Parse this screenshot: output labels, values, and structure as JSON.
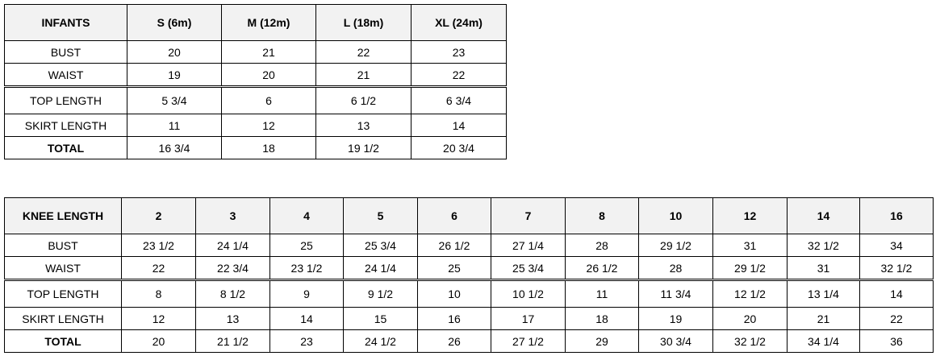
{
  "tables": [
    {
      "header": [
        "INFANTS",
        "S (6m)",
        "M (12m)",
        "L (18m)",
        "XL (24m)"
      ],
      "rows": [
        {
          "label": "BUST",
          "values": [
            "20",
            "21",
            "22",
            "23"
          ]
        },
        {
          "label": "WAIST",
          "values": [
            "19",
            "20",
            "21",
            "22"
          ]
        },
        {
          "label": "TOP LENGTH",
          "values": [
            "5 3/4",
            "6",
            "6 1/2",
            "6 3/4"
          ]
        },
        {
          "label": "SKIRT LENGTH",
          "values": [
            "11",
            "12",
            "13",
            "14"
          ]
        },
        {
          "label": "TOTAL",
          "values": [
            "16 3/4",
            "18",
            "19 1/2",
            "20 3/4"
          ]
        }
      ]
    },
    {
      "header": [
        "KNEE LENGTH",
        "2",
        "3",
        "4",
        "5",
        "6",
        "7",
        "8",
        "10",
        "12",
        "14",
        "16"
      ],
      "rows": [
        {
          "label": "BUST",
          "values": [
            "23 1/2",
            "24 1/4",
            "25",
            "25 3/4",
            "26 1/2",
            "27 1/4",
            "28",
            "29 1/2",
            "31",
            "32 1/2",
            "34"
          ]
        },
        {
          "label": "WAIST",
          "values": [
            "22",
            "22 3/4",
            "23 1/2",
            "24 1/4",
            "25",
            "25 3/4",
            "26 1/2",
            "28",
            "29 1/2",
            "31",
            "32 1/2"
          ]
        },
        {
          "label": "TOP LENGTH",
          "values": [
            "8",
            "8 1/2",
            "9",
            "9 1/2",
            "10",
            "10 1/2",
            "11",
            "11 3/4",
            "12 1/2",
            "13 1/4",
            "14"
          ]
        },
        {
          "label": "SKIRT LENGTH",
          "values": [
            "12",
            "13",
            "14",
            "15",
            "16",
            "17",
            "18",
            "19",
            "20",
            "21",
            "22"
          ]
        },
        {
          "label": "TOTAL",
          "values": [
            "20",
            "21 1/2",
            "23",
            "24 1/2",
            "26",
            "27 1/2",
            "29",
            "30 3/4",
            "32 1/2",
            "34 1/4",
            "36"
          ]
        }
      ]
    }
  ],
  "colors": {
    "header_bg": "#f2f2f2",
    "border": "#000000"
  }
}
